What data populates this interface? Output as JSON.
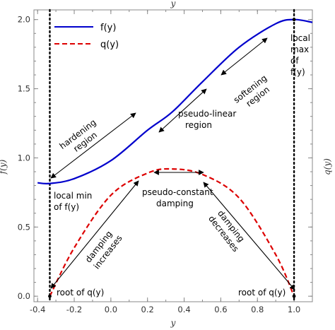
{
  "chart_data": {
    "type": "line",
    "xlabel": "y",
    "x2label": "y",
    "ylabel": "f(y)",
    "y2label": "q(y)",
    "xlim": [
      -0.42,
      1.1
    ],
    "ylim": [
      -0.04,
      2.07
    ],
    "xticks": [
      -0.4,
      -0.2,
      0.0,
      0.2,
      0.4,
      0.6,
      0.8,
      1.0
    ],
    "xtick_labels": [
      "-0.4",
      "-0.2",
      "0.0",
      "0.2",
      "0.4",
      "0.6",
      "0.8",
      "1.0"
    ],
    "yticks": [
      0.0,
      0.5,
      1.0,
      1.5,
      2.0
    ],
    "ytick_labels": [
      "0.0",
      "0.5",
      "1.0",
      "1.5",
      "2.0"
    ],
    "grid": false,
    "legend_position": "top-left",
    "series": [
      {
        "name": "f(y)",
        "color": "#0000cc",
        "style": "solid",
        "x": [
          -0.4,
          -0.3333,
          -0.2,
          0.0,
          0.2,
          0.3333,
          0.5,
          0.7,
          0.9,
          1.0,
          1.1
        ],
        "y": [
          0.82,
          0.815,
          0.85,
          0.98,
          1.2,
          1.33,
          1.55,
          1.8,
          1.97,
          2.0,
          1.98
        ]
      },
      {
        "name": "q(y)",
        "color": "#dd0000",
        "style": "dashed",
        "x": [
          -0.3333,
          -0.2,
          0.0,
          0.2,
          0.3333,
          0.5,
          0.7,
          0.9,
          1.0
        ],
        "y": [
          0.0,
          0.35,
          0.73,
          0.89,
          0.92,
          0.88,
          0.71,
          0.3,
          0.0
        ]
      }
    ],
    "reference_lines": [
      {
        "x": -0.3333,
        "style": "dotted",
        "color": "#000000"
      },
      {
        "x": 1.0,
        "style": "dotted",
        "color": "#000000"
      }
    ],
    "points": [
      {
        "x": -0.3333,
        "y": 0.0
      },
      {
        "x": 1.0,
        "y": 0.0
      },
      {
        "x": 1.0,
        "y": 2.0
      }
    ],
    "annotations": {
      "local_min": [
        "local min",
        "of f(y)"
      ],
      "local_max": [
        "local",
        "max",
        "of",
        "f(y)"
      ],
      "hardening": [
        "hardening",
        "region"
      ],
      "pseudo_linear": [
        "pseudo-linear",
        "region"
      ],
      "softening": [
        "softening",
        "region"
      ],
      "pseudo_constant": [
        "pseudo-constant",
        "damping"
      ],
      "damping_increases": [
        "damping",
        "increases"
      ],
      "damping_decreases": [
        "damping",
        "decreases"
      ],
      "root_left": "root of q(y)",
      "root_right": "root of q(y)"
    }
  }
}
